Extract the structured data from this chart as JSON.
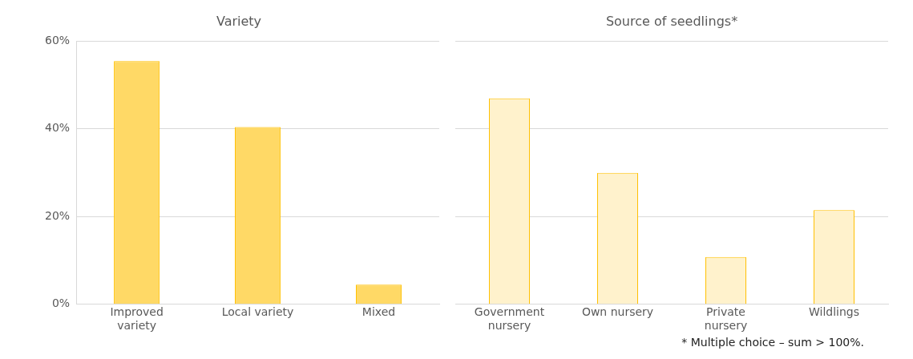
{
  "chart_data": [
    {
      "type": "bar",
      "title": "Variety",
      "categories": [
        "Improved variety",
        "Local variety",
        "Mixed"
      ],
      "series": [
        {
          "color": "#ffd966",
          "values": [
            55.4,
            40.4,
            4.4
          ]
        }
      ],
      "ylim": [
        0,
        60
      ],
      "yticks": [
        {
          "value": 0,
          "label": "0%"
        },
        {
          "value": 20,
          "label": "20%"
        },
        {
          "value": 40,
          "label": "40%"
        },
        {
          "value": 60,
          "label": "60%"
        }
      ],
      "grid": "y"
    },
    {
      "type": "bar",
      "title": "Source of seedlings*",
      "categories": [
        "Government nursery",
        "Own nursery",
        "Private nursery",
        "Wildlings"
      ],
      "series": [
        {
          "color": "#fff2cc",
          "values": [
            46.9,
            29.9,
            10.7,
            21.4
          ]
        }
      ],
      "ylim": [
        0,
        60
      ],
      "yticks": [
        {
          "value": 0,
          "label": null
        },
        {
          "value": 20,
          "label": null
        },
        {
          "value": 40,
          "label": null
        },
        {
          "value": 60,
          "label": null
        }
      ],
      "grid": "y",
      "tick_labels": "x",
      "annotations": [
        "* Multiple choice – sum > 100%."
      ]
    }
  ]
}
